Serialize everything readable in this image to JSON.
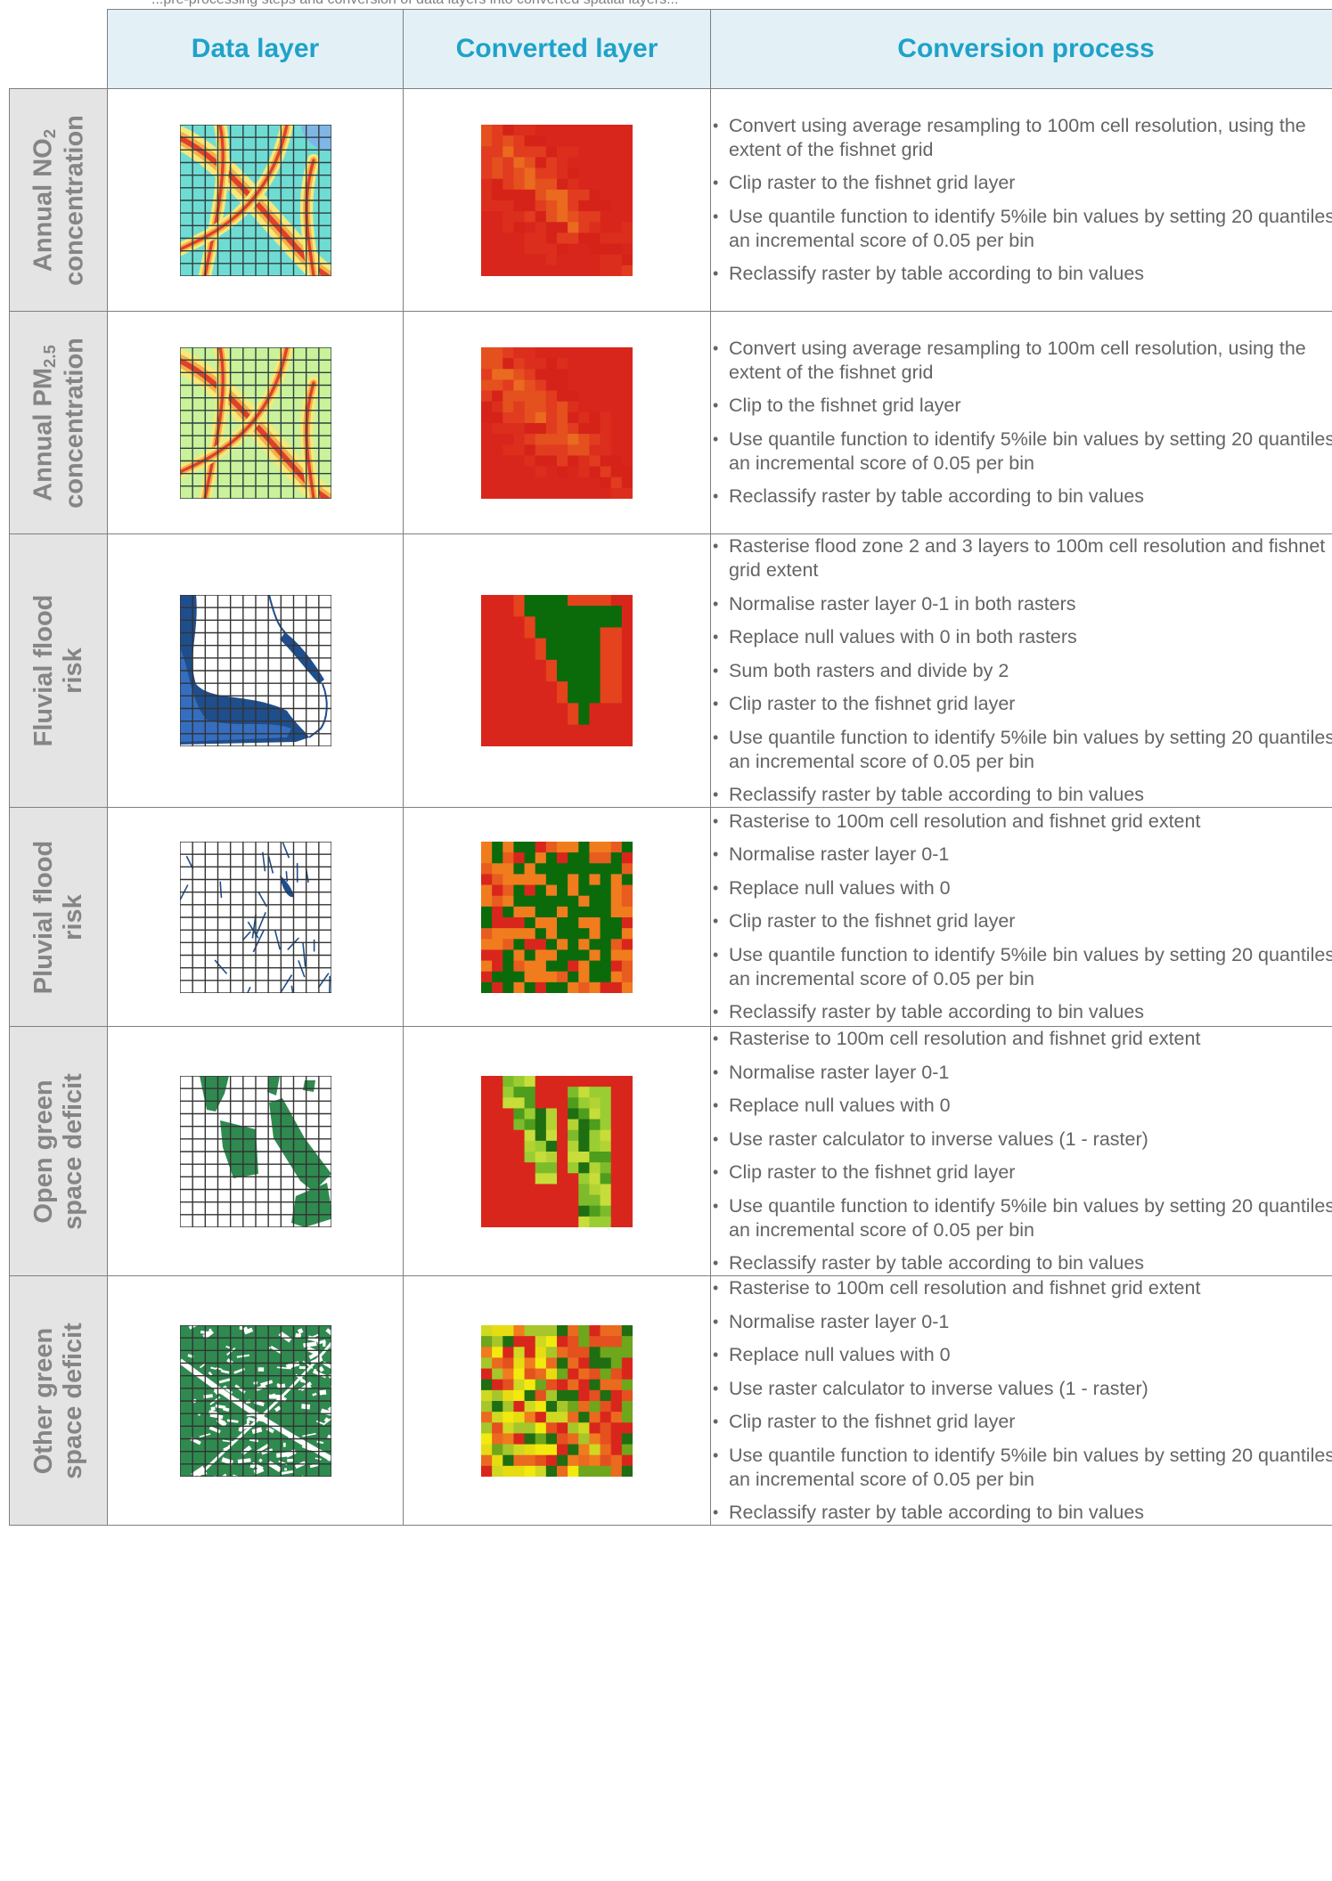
{
  "caption_fragment": "...pre-processing steps and conversion of data layers into converted spatial layers...",
  "headers": {
    "data_layer": "Data layer",
    "converted_layer": "Converted layer",
    "conversion_process": "Conversion process"
  },
  "rows": [
    {
      "label_html": "Annual NO<sub>2</sub><br>concentration",
      "label_text": "Annual NO2 concentration",
      "data_image": "no2-heatmap-map",
      "converted_image": "no2-converted-raster",
      "steps": [
        "Convert using average resampling to 100m cell resolution, using the extent of the fishnet grid",
        "Clip raster to the fishnet grid layer",
        "Use quantile function to identify 5%ile bin values by setting 20 quantiles; an incremental score of 0.05 per bin",
        "Reclassify raster by table according to bin values"
      ]
    },
    {
      "label_html": "Annual PM<sub>2.5</sub><br>concentration",
      "label_text": "Annual PM2.5 concentration",
      "data_image": "pm25-heatmap-map",
      "converted_image": "pm25-converted-raster",
      "steps": [
        "Convert using average resampling to 100m cell resolution, using the extent of the fishnet grid",
        "Clip to the fishnet grid layer",
        "Use quantile function to identify 5%ile bin values by setting 20 quantiles; an incremental score of 0.05 per bin",
        "Reclassify raster by table according to bin values"
      ]
    },
    {
      "label_html": "Fluvial flood<br>risk",
      "label_text": "Fluvial flood risk",
      "data_image": "fluvial-flood-map",
      "converted_image": "fluvial-converted-raster",
      "steps": [
        "Rasterise flood zone 2 and 3 layers to 100m cell resolution and fishnet grid extent",
        "Normalise raster layer 0-1 in both rasters",
        "Replace null values with 0 in both rasters",
        "Sum both rasters and divide by 2",
        "Clip raster to the fishnet grid layer",
        "Use quantile function to identify 5%ile bin values by setting 20 quantiles; an incremental score of 0.05 per bin",
        "Reclassify raster by table according to bin values"
      ]
    },
    {
      "label_html": "Pluvial flood<br>risk",
      "label_text": "Pluvial flood risk",
      "data_image": "pluvial-flood-map",
      "converted_image": "pluvial-converted-raster",
      "steps": [
        "Rasterise to 100m cell resolution and fishnet grid extent",
        "Normalise raster layer 0-1",
        "Replace null values with 0",
        "Clip raster to the fishnet grid layer",
        "Use quantile function to identify 5%ile bin values by setting 20 quantiles; an incremental score of 0.05 per bin",
        "Reclassify raster by table according to bin values"
      ]
    },
    {
      "label_html": "Open green<br>space deficit",
      "label_text": "Open green space deficit",
      "data_image": "open-green-space-map",
      "converted_image": "open-green-converted-raster",
      "steps": [
        "Rasterise to 100m cell resolution and fishnet grid extent",
        "Normalise raster layer 0-1",
        "Replace null values with 0",
        "Use raster calculator to inverse values (1 - raster)",
        "Clip raster to the fishnet grid layer",
        "Use quantile function to identify 5%ile bin values by setting 20 quantiles; an incremental score of 0.05 per bin",
        "Reclassify raster by table according to bin values"
      ]
    },
    {
      "label_html": "Other green<br>space deficit",
      "label_text": "Other green space deficit",
      "data_image": "other-green-space-map",
      "converted_image": "other-green-converted-raster",
      "steps": [
        "Rasterise  to 100m cell resolution and fishnet grid extent",
        "Normalise raster layer 0-1",
        "Replace null values with 0",
        "Use raster calculator to inverse values (1 - raster)",
        "Clip raster to the fishnet grid layer",
        "Use quantile function to identify 5%ile bin values by setting 20 quantiles; an incremental score of 0.05 per bin",
        "Reclassify raster by table according to bin values"
      ]
    }
  ],
  "colors": {
    "header_bg": "#e3f1f7",
    "header_text": "#1fa2c9",
    "row_header_bg": "#e4e4e4",
    "row_header_text": "#858585",
    "border": "#7f7f7f",
    "raster_red": "#d9261c",
    "raster_orange": "#f07c1e",
    "raster_dark_green": "#0b6b0b",
    "raster_yellow": "#f2ea0e",
    "map_green": "#2f8a4f",
    "map_blue": "#1f4e8c"
  }
}
